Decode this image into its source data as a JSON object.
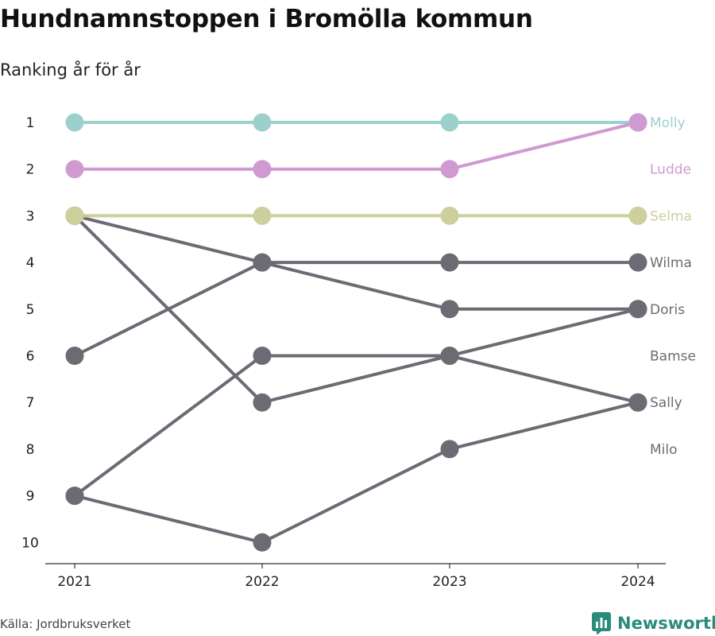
{
  "header": {
    "title": "Hundnamnstoppen i Bromölla kommun",
    "subtitle": "Ranking år för år"
  },
  "footer": {
    "source": "Källa: Jordbruksverket",
    "brand": "Newsworthy"
  },
  "colors": {
    "Molly": "#9dd0cd",
    "Ludde": "#cf9ad0",
    "Selma": "#cdcf9d",
    "gray": "#6c6b74",
    "brand": "#2a8a7c"
  },
  "chart_data": {
    "type": "line",
    "subtype": "bump",
    "x": [
      "2021",
      "2022",
      "2023",
      "2024"
    ],
    "y_ticks": [
      "1",
      "2",
      "3",
      "4",
      "5",
      "6",
      "7",
      "8",
      "9",
      "10"
    ],
    "ylim": [
      1,
      10
    ],
    "y_reversed": true,
    "grid": false,
    "series": [
      {
        "name": "Molly",
        "values": [
          1,
          1,
          1,
          1
        ],
        "highlight": true
      },
      {
        "name": "Ludde",
        "values": [
          2,
          2,
          2,
          1
        ],
        "highlight": true
      },
      {
        "name": "Selma",
        "values": [
          3,
          3,
          3,
          3
        ],
        "highlight": true
      },
      {
        "name": "Wilma",
        "values": [
          6,
          4,
          4,
          4
        ],
        "highlight": false
      },
      {
        "name": "Doris",
        "values": [
          3,
          4,
          5,
          5
        ],
        "highlight": false
      },
      {
        "name": "Bamse",
        "values": [
          9,
          6,
          6,
          5
        ],
        "highlight": false
      },
      {
        "name": "Sally",
        "values": [
          3,
          7,
          6,
          7
        ],
        "highlight": false
      },
      {
        "name": "Milo",
        "values": [
          9,
          10,
          8,
          7
        ],
        "highlight": false
      }
    ],
    "end_labels": [
      {
        "name": "Molly",
        "rank": 1
      },
      {
        "name": "Ludde",
        "rank": 2
      },
      {
        "name": "Selma",
        "rank": 3
      },
      {
        "name": "Wilma",
        "rank": 4
      },
      {
        "name": "Doris",
        "rank": 5
      },
      {
        "name": "Bamse",
        "rank": 6
      },
      {
        "name": "Sally",
        "rank": 7
      },
      {
        "name": "Milo",
        "rank": 8
      }
    ]
  }
}
